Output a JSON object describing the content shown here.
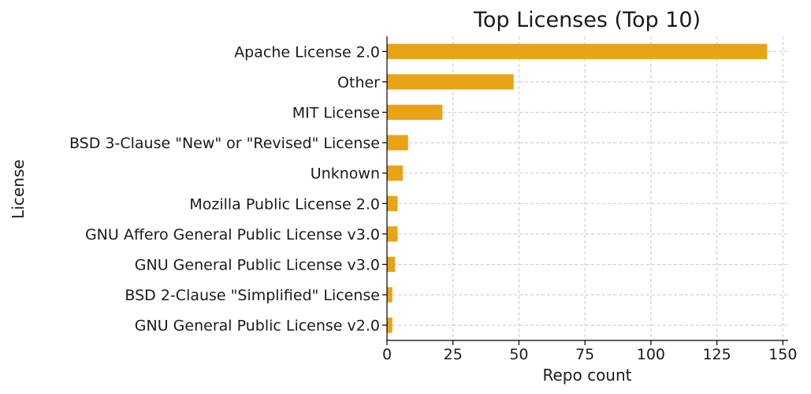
{
  "chart_data": {
    "type": "bar",
    "orientation": "horizontal",
    "title": "Top Licenses (Top 10)",
    "xlabel": "Repo count",
    "ylabel": "License",
    "xlim": [
      0,
      152
    ],
    "xticks": [
      0,
      25,
      50,
      75,
      100,
      125,
      150
    ],
    "grid": true,
    "bar_color": "#E8A317",
    "categories": [
      "Apache License 2.0",
      "Other",
      "MIT License",
      "BSD 3-Clause \"New\" or \"Revised\" License",
      "Unknown",
      "Mozilla Public License 2.0",
      "GNU Affero General Public License v3.0",
      "GNU General Public License v3.0",
      "BSD 2-Clause \"Simplified\" License",
      "GNU General Public License v2.0"
    ],
    "values": [
      144,
      48,
      21,
      8,
      6,
      4,
      4,
      3,
      2,
      2
    ]
  }
}
